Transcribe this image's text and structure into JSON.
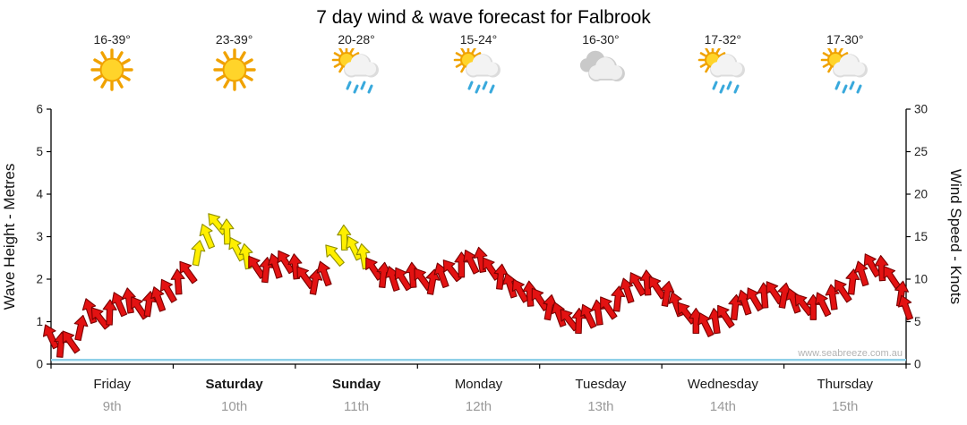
{
  "title": "7 day wind & wave forecast for Falbrook",
  "watermark": "www.seabreeze.com.au",
  "days": [
    {
      "name": "Friday",
      "date": "9th",
      "temp": "16-39°",
      "icon": "sun",
      "bold": false
    },
    {
      "name": "Saturday",
      "date": "10th",
      "temp": "23-39°",
      "icon": "sun",
      "bold": true
    },
    {
      "name": "Sunday",
      "date": "11th",
      "temp": "20-28°",
      "icon": "sun-showers",
      "bold": true
    },
    {
      "name": "Monday",
      "date": "12th",
      "temp": "15-24°",
      "icon": "sun-showers",
      "bold": false
    },
    {
      "name": "Tuesday",
      "date": "13th",
      "temp": "16-30°",
      "icon": "cloudy",
      "bold": false
    },
    {
      "name": "Wednesday",
      "date": "14th",
      "temp": "17-32°",
      "icon": "sun-showers",
      "bold": false
    },
    {
      "name": "Thursday",
      "date": "15th",
      "temp": "17-30°",
      "icon": "sun-showers",
      "bold": false
    }
  ],
  "chart_data": {
    "type": "wind-arrow-series",
    "title": "7 day wind & wave forecast for Falbrook",
    "left_axis": {
      "label": "Wave Height - Metres",
      "min": 0,
      "max": 6,
      "step": 1
    },
    "right_axis": {
      "label": "Wind Speed - Knots",
      "min": 0,
      "max": 30,
      "step": 5
    },
    "x_categories": [
      "Friday",
      "Saturday",
      "Sunday",
      "Monday",
      "Tuesday",
      "Wednesday",
      "Thursday"
    ],
    "arrow_colors": {
      "normal": "#e31212",
      "normal_stroke": "#7a0000",
      "strong": "#ffef00",
      "strong_stroke": "#8f8f00",
      "strong_threshold_knots": 12.5
    },
    "wave_color": "#8fd0e8",
    "wind_points": [
      [
        0.0,
        3.2,
        -25
      ],
      [
        0.08,
        2.2,
        5
      ],
      [
        0.16,
        2.6,
        -35
      ],
      [
        0.24,
        4.2,
        12
      ],
      [
        0.32,
        6.2,
        -18
      ],
      [
        0.4,
        5.4,
        -38
      ],
      [
        0.48,
        6.0,
        2
      ],
      [
        0.56,
        7.0,
        -24
      ],
      [
        0.64,
        7.4,
        -8
      ],
      [
        0.72,
        6.6,
        -34
      ],
      [
        0.8,
        7.0,
        8
      ],
      [
        0.88,
        7.6,
        -20
      ],
      [
        0.96,
        8.6,
        -30
      ],
      [
        1.04,
        9.6,
        -4
      ],
      [
        1.12,
        10.8,
        -36
      ],
      [
        1.2,
        13.0,
        10
      ],
      [
        1.28,
        15.0,
        -22
      ],
      [
        1.36,
        16.5,
        -40
      ],
      [
        1.44,
        15.5,
        -2
      ],
      [
        1.52,
        13.5,
        -28
      ],
      [
        1.6,
        12.6,
        -10
      ],
      [
        1.68,
        11.4,
        -34
      ],
      [
        1.76,
        11.0,
        6
      ],
      [
        1.84,
        11.5,
        -18
      ],
      [
        1.92,
        12.0,
        -32
      ],
      [
        2.0,
        11.4,
        -6
      ],
      [
        2.08,
        10.2,
        -36
      ],
      [
        2.16,
        9.6,
        10
      ],
      [
        2.24,
        10.6,
        -20
      ],
      [
        2.32,
        12.8,
        -40
      ],
      [
        2.4,
        14.8,
        -2
      ],
      [
        2.48,
        13.6,
        -26
      ],
      [
        2.56,
        12.6,
        -10
      ],
      [
        2.64,
        11.2,
        -34
      ],
      [
        2.72,
        10.4,
        6
      ],
      [
        2.8,
        10.0,
        -18
      ],
      [
        2.88,
        10.0,
        -32
      ],
      [
        2.96,
        10.4,
        -4
      ],
      [
        3.04,
        10.0,
        -36
      ],
      [
        3.12,
        9.6,
        10
      ],
      [
        3.2,
        10.4,
        -20
      ],
      [
        3.28,
        11.0,
        -38
      ],
      [
        3.36,
        11.6,
        0
      ],
      [
        3.44,
        12.0,
        -26
      ],
      [
        3.52,
        12.2,
        -10
      ],
      [
        3.6,
        11.2,
        -34
      ],
      [
        3.68,
        10.2,
        6
      ],
      [
        3.76,
        9.2,
        -18
      ],
      [
        3.84,
        8.6,
        -30
      ],
      [
        3.92,
        8.2,
        -4
      ],
      [
        4.0,
        7.6,
        -34
      ],
      [
        4.08,
        6.6,
        10
      ],
      [
        4.16,
        5.8,
        -20
      ],
      [
        4.24,
        5.2,
        -38
      ],
      [
        4.32,
        5.0,
        2
      ],
      [
        4.4,
        5.6,
        -26
      ],
      [
        4.48,
        6.0,
        -8
      ],
      [
        4.56,
        6.6,
        -34
      ],
      [
        4.64,
        7.6,
        6
      ],
      [
        4.72,
        8.6,
        -18
      ],
      [
        4.8,
        9.4,
        -30
      ],
      [
        4.88,
        9.5,
        -4
      ],
      [
        4.96,
        9.0,
        -34
      ],
      [
        5.04,
        8.2,
        10
      ],
      [
        5.12,
        7.0,
        -20
      ],
      [
        5.2,
        6.0,
        -38
      ],
      [
        5.28,
        5.0,
        0
      ],
      [
        5.36,
        4.6,
        -26
      ],
      [
        5.44,
        5.0,
        -8
      ],
      [
        5.52,
        5.6,
        -34
      ],
      [
        5.6,
        6.6,
        6
      ],
      [
        5.68,
        7.2,
        -18
      ],
      [
        5.76,
        7.6,
        -30
      ],
      [
        5.84,
        8.0,
        -4
      ],
      [
        5.92,
        8.4,
        -34
      ],
      [
        6.0,
        8.0,
        10
      ],
      [
        6.08,
        7.4,
        -20
      ],
      [
        6.16,
        7.0,
        -38
      ],
      [
        6.24,
        6.6,
        0
      ],
      [
        6.32,
        7.0,
        -26
      ],
      [
        6.4,
        7.8,
        -8
      ],
      [
        6.48,
        8.6,
        -34
      ],
      [
        6.56,
        9.6,
        6
      ],
      [
        6.64,
        10.6,
        -18
      ],
      [
        6.72,
        11.6,
        -30
      ],
      [
        6.8,
        11.2,
        -4
      ],
      [
        6.88,
        10.2,
        -34
      ],
      [
        6.96,
        8.2,
        8
      ],
      [
        7.0,
        6.6,
        -20
      ]
    ],
    "wave_points": [
      [
        0,
        0.1
      ],
      [
        7,
        0.1
      ]
    ]
  }
}
